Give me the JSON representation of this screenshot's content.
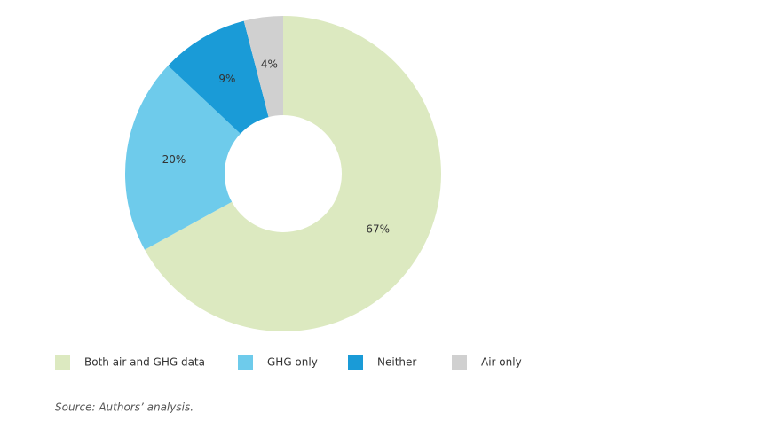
{
  "chart_data": {
    "type": "donut",
    "categories": [
      "Both air and GHG data",
      "GHG only",
      "Neither",
      "Air only"
    ],
    "values": [
      67,
      20,
      9,
      4
    ],
    "value_labels": [
      "67%",
      "20%",
      "9%",
      "4%"
    ],
    "colors": [
      "#dce9c0",
      "#6ecbeb",
      "#1a9bd7",
      "#d0d0d0"
    ],
    "source": "Source: Authors’ analysis."
  }
}
